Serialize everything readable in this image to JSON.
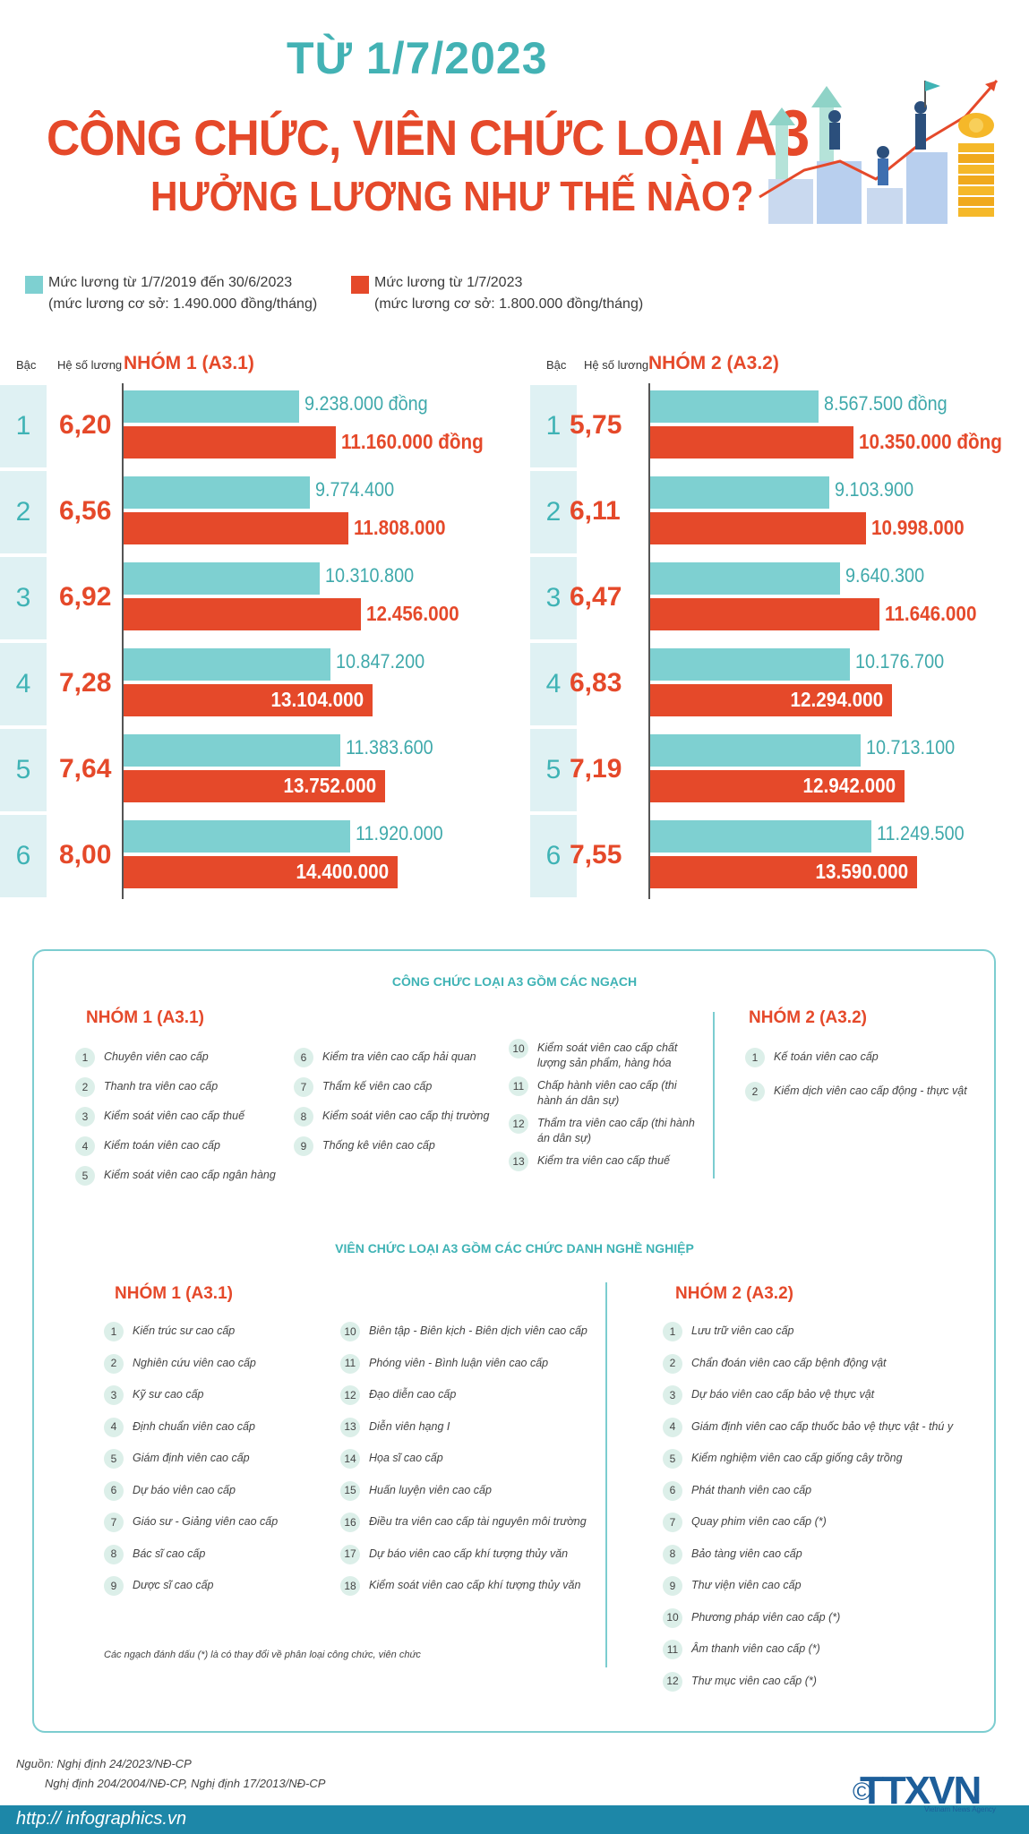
{
  "header": {
    "line1": "TỪ 1/7/2023",
    "line2_main": "CÔNG CHỨC, VIÊN CHỨC LOẠI",
    "line2_big": "A3",
    "line3": "HƯỞNG LƯƠNG NHƯ THẾ NÀO?"
  },
  "legend": {
    "old": {
      "title": "Mức lương từ 1/7/2019 đến 30/6/2023",
      "sub": "(mức lương cơ sở: 1.490.000 đồng/tháng)",
      "color": "#7ed0d1"
    },
    "new": {
      "title": "Mức lương từ 1/7/2023",
      "sub": "(mức lương cơ sở: 1.800.000 đồng/tháng)",
      "color": "#e5492a"
    }
  },
  "colhead": {
    "rank": "Bậc",
    "coef": "Hệ số lương"
  },
  "chart_data": [
    {
      "type": "bar",
      "title": "NHÓM 1 (A3.1)",
      "categories": [
        "1",
        "2",
        "3",
        "4",
        "5",
        "6"
      ],
      "coefficients": [
        "6,20",
        "6,56",
        "6,92",
        "7,28",
        "7,64",
        "8,00"
      ],
      "series": [
        {
          "name": "Mức lương từ 1/7/2019 đến 30/6/2023",
          "values": [
            9238000,
            9774400,
            10310800,
            10847200,
            11383600,
            11920000
          ],
          "labels": [
            "9.238.000 đồng",
            "9.774.400",
            "10.310.800",
            "10.847.200",
            "11.383.600",
            "11.920.000"
          ]
        },
        {
          "name": "Mức lương từ 1/7/2023",
          "values": [
            11160000,
            11808000,
            12456000,
            13104000,
            13752000,
            14400000
          ],
          "labels": [
            "11.160.000 đồng",
            "11.808.000",
            "12.456.000",
            "13.104.000",
            "13.752.000",
            "14.400.000"
          ]
        }
      ]
    },
    {
      "type": "bar",
      "title": "NHÓM 2 (A3.2)",
      "categories": [
        "1",
        "2",
        "3",
        "4",
        "5",
        "6"
      ],
      "coefficients": [
        "5,75",
        "6,11",
        "6,47",
        "6,83",
        "7,19",
        "7,55"
      ],
      "series": [
        {
          "name": "Mức lương từ 1/7/2019 đến 30/6/2023",
          "values": [
            8567500,
            9103900,
            9640300,
            10176700,
            10713100,
            11249500
          ],
          "labels": [
            "8.567.500 đồng",
            "9.103.900",
            "9.640.300",
            "10.176.700",
            "10.713.100",
            "11.249.500"
          ]
        },
        {
          "name": "Mức lương từ 1/7/2023",
          "values": [
            10350000,
            10998000,
            11646000,
            12294000,
            12942000,
            13590000
          ],
          "labels": [
            "10.350.000 đồng",
            "10.998.000",
            "11.646.000",
            "12.294.000",
            "12.942.000",
            "13.590.000"
          ]
        }
      ]
    }
  ],
  "congchuc": {
    "title": "CÔNG CHỨC LOẠI A3 GỒM CÁC NGẠCH",
    "g1_title": "NHÓM 1 (A3.1)",
    "g2_title": "NHÓM 2 (A3.2)",
    "col1": [
      {
        "n": "1",
        "t": "Chuyên viên cao cấp"
      },
      {
        "n": "2",
        "t": "Thanh tra viên cao cấp"
      },
      {
        "n": "3",
        "t": "Kiểm soát viên cao cấp thuế"
      },
      {
        "n": "4",
        "t": "Kiểm toán viên cao cấp"
      },
      {
        "n": "5",
        "t": "Kiểm soát viên cao cấp ngân hàng"
      }
    ],
    "col2": [
      {
        "n": "6",
        "t": "Kiểm tra viên cao cấp hải quan"
      },
      {
        "n": "7",
        "t": "Thẩm kế viên cao cấp"
      },
      {
        "n": "8",
        "t": "Kiểm soát viên cao cấp thị trường"
      },
      {
        "n": "9",
        "t": "Thống kê viên cao cấp"
      }
    ],
    "col3": [
      {
        "n": "10",
        "t": "Kiểm soát viên cao cấp chất lượng sản phẩm, hàng hóa"
      },
      {
        "n": "11",
        "t": "Chấp hành viên cao cấp (thi hành án dân sự)"
      },
      {
        "n": "12",
        "t": "Thẩm tra viên cao cấp (thi hành án dân sự)"
      },
      {
        "n": "13",
        "t": "Kiểm tra viên cao cấp thuế"
      }
    ],
    "g2": [
      {
        "n": "1",
        "t": "Kế toán viên cao cấp"
      },
      {
        "n": "2",
        "t": "Kiểm dịch viên cao cấp động - thực vật"
      }
    ]
  },
  "vienchuc": {
    "title": "VIÊN CHỨC LOẠI A3 GỒM CÁC CHỨC DANH NGHỀ NGHIỆP",
    "g1_title": "NHÓM 1 (A3.1)",
    "g2_title": "NHÓM 2 (A3.2)",
    "col1": [
      {
        "n": "1",
        "t": "Kiến trúc sư cao cấp"
      },
      {
        "n": "2",
        "t": "Nghiên cứu viên cao cấp"
      },
      {
        "n": "3",
        "t": "Kỹ sư cao cấp"
      },
      {
        "n": "4",
        "t": "Định chuẩn viên cao cấp"
      },
      {
        "n": "5",
        "t": "Giám định viên cao cấp"
      },
      {
        "n": "6",
        "t": "Dự báo viên cao cấp"
      },
      {
        "n": "7",
        "t": "Giáo sư - Giảng viên cao cấp"
      },
      {
        "n": "8",
        "t": "Bác sĩ cao cấp"
      },
      {
        "n": "9",
        "t": "Dược sĩ cao cấp"
      }
    ],
    "col2": [
      {
        "n": "10",
        "t": "Biên tập - Biên kịch - Biên dịch viên cao cấp"
      },
      {
        "n": "11",
        "t": "Phóng viên - Bình luận viên cao cấp"
      },
      {
        "n": "12",
        "t": "Đạo diễn cao cấp"
      },
      {
        "n": "13",
        "t": "Diễn viên hạng I"
      },
      {
        "n": "14",
        "t": "Họa sĩ cao cấp"
      },
      {
        "n": "15",
        "t": "Huấn luyện viên cao cấp"
      },
      {
        "n": "16",
        "t": "Điều tra viên cao cấp tài nguyên môi trường"
      },
      {
        "n": "17",
        "t": "Dự báo viên cao cấp khí tượng thủy văn"
      },
      {
        "n": "18",
        "t": "Kiểm soát viên cao cấp khí tượng thủy văn"
      }
    ],
    "g2": [
      {
        "n": "1",
        "t": "Lưu trữ viên cao cấp"
      },
      {
        "n": "2",
        "t": "Chẩn đoán viên cao cấp bệnh động vật"
      },
      {
        "n": "3",
        "t": "Dự báo viên cao cấp bảo vệ thực vật"
      },
      {
        "n": "4",
        "t": "Giám định viên cao cấp thuốc bảo vệ thực vật - thú y"
      },
      {
        "n": "5",
        "t": "Kiểm nghiệm viên cao cấp giống cây trồng"
      },
      {
        "n": "6",
        "t": "Phát thanh viên cao cấp"
      },
      {
        "n": "7",
        "t": "Quay phim viên cao cấp (*)"
      },
      {
        "n": "8",
        "t": "Bảo tàng viên cao cấp"
      },
      {
        "n": "9",
        "t": "Thư viện viên cao cấp"
      },
      {
        "n": "10",
        "t": "Phương pháp viên cao cấp (*)"
      },
      {
        "n": "11",
        "t": "Âm thanh viên cao cấp (*)"
      },
      {
        "n": "12",
        "t": "Thư mục viên cao cấp (*)"
      }
    ],
    "note": "Các ngạch đánh dấu (*) là có thay đổi về phân loại công chức, viên chức"
  },
  "source": {
    "line1": "Nguồn: Nghị định 24/2023/NĐ-CP",
    "line2": "Nghị định 204/2004/NĐ-CP, Nghị định 17/2013/NĐ-CP"
  },
  "footer": {
    "url": "http:// infographics.vn",
    "logo": "TTXVN",
    "logo_sub": "Vietnam News Agency",
    "copyright": "©"
  }
}
